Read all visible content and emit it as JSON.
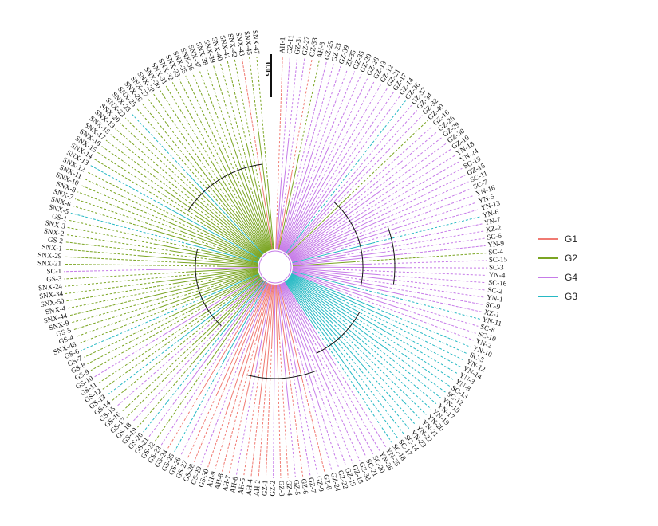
{
  "scale_bar": {
    "label": "0.05"
  },
  "legend": [
    {
      "name": "G1",
      "color": "#f07a72"
    },
    {
      "name": "G2",
      "color": "#7ba523"
    },
    {
      "name": "G4",
      "color": "#c67be8"
    },
    {
      "name": "G3",
      "color": "#27b9c4"
    }
  ],
  "tree_colors": {
    "G1": "#f07a72",
    "G2": "#7ba523",
    "G4": "#c67be8",
    "G3": "#27b9c4",
    "internal": "#111111"
  },
  "tips": [
    {
      "label": "AH-1",
      "group": "G1"
    },
    {
      "label": "GZ-11",
      "group": "G4"
    },
    {
      "label": "GZ-31",
      "group": "G4"
    },
    {
      "label": "GZ-27",
      "group": "G4"
    },
    {
      "label": "GZ-33",
      "group": "G1"
    },
    {
      "label": "AH-3",
      "group": "G2"
    },
    {
      "label": "GZ-25",
      "group": "G4"
    },
    {
      "label": "GZ-23",
      "group": "G4"
    },
    {
      "label": "GZ-39",
      "group": "G4"
    },
    {
      "label": "ZJ-35",
      "group": "G4"
    },
    {
      "label": "GZ-35",
      "group": "G4"
    },
    {
      "label": "GZ-20",
      "group": "G4"
    },
    {
      "label": "GZ-28",
      "group": "G4"
    },
    {
      "label": "GZ-13",
      "group": "G4"
    },
    {
      "label": "GZ-12",
      "group": "G4"
    },
    {
      "label": "GZ-21",
      "group": "G4"
    },
    {
      "label": "GZ-17",
      "group": "G4"
    },
    {
      "label": "GZ-14",
      "group": "G4"
    },
    {
      "label": "GZ-36",
      "group": "G3"
    },
    {
      "label": "GZ-37",
      "group": "G4"
    },
    {
      "label": "GZ-34",
      "group": "G4"
    },
    {
      "label": "GZ-32",
      "group": "G4"
    },
    {
      "label": "GZ-40",
      "group": "G2"
    },
    {
      "label": "GZ-16",
      "group": "G4"
    },
    {
      "label": "GZ-26",
      "group": "G4"
    },
    {
      "label": "GZ-29",
      "group": "G4"
    },
    {
      "label": "GZ-30",
      "group": "G4"
    },
    {
      "label": "GZ-10",
      "group": "G4"
    },
    {
      "label": "YN-18",
      "group": "G4"
    },
    {
      "label": "YN-24",
      "group": "G4"
    },
    {
      "label": "SC-19",
      "group": "G4"
    },
    {
      "label": "GZ-15",
      "group": "G4"
    },
    {
      "label": "SC-11",
      "group": "G4"
    },
    {
      "label": "SC-7",
      "group": "G4"
    },
    {
      "label": "YN-16",
      "group": "G4"
    },
    {
      "label": "YN-5",
      "group": "G4"
    },
    {
      "label": "YN-13",
      "group": "G4"
    },
    {
      "label": "YN-6",
      "group": "G3"
    },
    {
      "label": "YN-7",
      "group": "G4"
    },
    {
      "label": "XZ-2",
      "group": "G4"
    },
    {
      "label": "SC-6",
      "group": "G4"
    },
    {
      "label": "YN-9",
      "group": "G4"
    },
    {
      "label": "SC-4",
      "group": "G2"
    },
    {
      "label": "SC-15",
      "group": "G4"
    },
    {
      "label": "SC-3",
      "group": "G4"
    },
    {
      "label": "YN-4",
      "group": "G4"
    },
    {
      "label": "SC-16",
      "group": "G4"
    },
    {
      "label": "SC-2",
      "group": "G4"
    },
    {
      "label": "YN-1",
      "group": "G4"
    },
    {
      "label": "SC-9",
      "group": "G4"
    },
    {
      "label": "XZ-1",
      "group": "G4"
    },
    {
      "label": "YN-11",
      "group": "G3"
    },
    {
      "label": "SC-8",
      "group": "G4"
    },
    {
      "label": "SC-10",
      "group": "G4"
    },
    {
      "label": "YN-2",
      "group": "G4"
    },
    {
      "label": "YN-10",
      "group": "G3"
    },
    {
      "label": "SC-5",
      "group": "G3"
    },
    {
      "label": "YN-12",
      "group": "G3"
    },
    {
      "label": "YN-14",
      "group": "G3"
    },
    {
      "label": "YN-3",
      "group": "G3"
    },
    {
      "label": "YN-8",
      "group": "G3"
    },
    {
      "label": "SC-13",
      "group": "G3"
    },
    {
      "label": "SC-12",
      "group": "G3"
    },
    {
      "label": "YN-15",
      "group": "G3"
    },
    {
      "label": "YN-17",
      "group": "G3"
    },
    {
      "label": "YN-19",
      "group": "G3"
    },
    {
      "label": "YN-20",
      "group": "G3"
    },
    {
      "label": "YN-21",
      "group": "G3"
    },
    {
      "label": "YN-22",
      "group": "G3"
    },
    {
      "label": "YN-23",
      "group": "G3"
    },
    {
      "label": "SC-14",
      "group": "G3"
    },
    {
      "label": "SC-17",
      "group": "G3"
    },
    {
      "label": "SC-18",
      "group": "G3"
    },
    {
      "label": "YN-25",
      "group": "G4"
    },
    {
      "label": "YN-26",
      "group": "G4"
    },
    {
      "label": "SC-20",
      "group": "G4"
    },
    {
      "label": "SC-21",
      "group": "G4"
    },
    {
      "label": "GZ-38",
      "group": "G4"
    },
    {
      "label": "GZ-18",
      "group": "G4"
    },
    {
      "label": "GZ-19",
      "group": "G4"
    },
    {
      "label": "GZ-22",
      "group": "G4"
    },
    {
      "label": "GZ-24",
      "group": "G4"
    },
    {
      "label": "GZ-8",
      "group": "G1"
    },
    {
      "label": "GZ-9",
      "group": "G4"
    },
    {
      "label": "GZ-7",
      "group": "G4"
    },
    {
      "label": "GZ-6",
      "group": "G1"
    },
    {
      "label": "GZ-5",
      "group": "G4"
    },
    {
      "label": "GZ-4",
      "group": "G1"
    },
    {
      "label": "GZ-3",
      "group": "G1"
    },
    {
      "label": "GZ-2",
      "group": "G4"
    },
    {
      "label": "GZ-1",
      "group": "G1"
    },
    {
      "label": "AH-2",
      "group": "G1"
    },
    {
      "label": "AH-4",
      "group": "G1"
    },
    {
      "label": "AH-5",
      "group": "G1"
    },
    {
      "label": "AH-6",
      "group": "G4"
    },
    {
      "label": "AH-7",
      "group": "G1"
    },
    {
      "label": "AH-8",
      "group": "G1"
    },
    {
      "label": "AH-9",
      "group": "G1"
    },
    {
      "label": "GS-30",
      "group": "G1"
    },
    {
      "label": "GS-29",
      "group": "G4"
    },
    {
      "label": "GS-28",
      "group": "G1"
    },
    {
      "label": "GS-27",
      "group": "G1"
    },
    {
      "label": "GS-26",
      "group": "G4"
    },
    {
      "label": "GS-25",
      "group": "G3"
    },
    {
      "label": "GS-24",
      "group": "G1"
    },
    {
      "label": "GS-23",
      "group": "G4"
    },
    {
      "label": "GS-22",
      "group": "G2"
    },
    {
      "label": "GS-21",
      "group": "G4"
    },
    {
      "label": "GS-20",
      "group": "G3"
    },
    {
      "label": "GS-19",
      "group": "G2"
    },
    {
      "label": "GS-18",
      "group": "G4"
    },
    {
      "label": "GS-17",
      "group": "G2"
    },
    {
      "label": "GS-16",
      "group": "G2"
    },
    {
      "label": "GS-15",
      "group": "G4"
    },
    {
      "label": "GS-14",
      "group": "G2"
    },
    {
      "label": "GS-13",
      "group": "G3"
    },
    {
      "label": "GS-12",
      "group": "G2"
    },
    {
      "label": "GS-11",
      "group": "G2"
    },
    {
      "label": "GS-10",
      "group": "G4"
    },
    {
      "label": "GS-9",
      "group": "G2"
    },
    {
      "label": "GS-8",
      "group": "G2"
    },
    {
      "label": "GS-7",
      "group": "G2"
    },
    {
      "label": "GS-6",
      "group": "G3"
    },
    {
      "label": "SNX-46",
      "group": "G2"
    },
    {
      "label": "GS-4",
      "group": "G2"
    },
    {
      "label": "GS-5",
      "group": "G2"
    },
    {
      "label": "SNX-9",
      "group": "G2"
    },
    {
      "label": "SNX-44",
      "group": "G2"
    },
    {
      "label": "SNX-4",
      "group": "G2"
    },
    {
      "label": "SNX-50",
      "group": "G2"
    },
    {
      "label": "SNX-34",
      "group": "G2"
    },
    {
      "label": "SNX-24",
      "group": "G2"
    },
    {
      "label": "GS-3",
      "group": "G2"
    },
    {
      "label": "SC-1",
      "group": "G4"
    },
    {
      "label": "SNX-21",
      "group": "G2"
    },
    {
      "label": "SNX-29",
      "group": "G2"
    },
    {
      "label": "SNX-1",
      "group": "G2"
    },
    {
      "label": "GS-2",
      "group": "G2"
    },
    {
      "label": "SNX-2",
      "group": "G2"
    },
    {
      "label": "SNX-3",
      "group": "G2"
    },
    {
      "label": "GS-1",
      "group": "G2"
    },
    {
      "label": "SNX-5",
      "group": "G3"
    },
    {
      "label": "SNX-6",
      "group": "G2"
    },
    {
      "label": "SNX-7",
      "group": "G2"
    },
    {
      "label": "SNX-8",
      "group": "G2"
    },
    {
      "label": "SNX-10",
      "group": "G2"
    },
    {
      "label": "SNX-11",
      "group": "G2"
    },
    {
      "label": "SNX-12",
      "group": "G2"
    },
    {
      "label": "SNX-13",
      "group": "G3"
    },
    {
      "label": "SNX-14",
      "group": "G2"
    },
    {
      "label": "SNX-15",
      "group": "G2"
    },
    {
      "label": "SNX-16",
      "group": "G2"
    },
    {
      "label": "SNX-17",
      "group": "G2"
    },
    {
      "label": "SNX-18",
      "group": "G2"
    },
    {
      "label": "SNX-19",
      "group": "G2"
    },
    {
      "label": "SNX-20",
      "group": "G2"
    },
    {
      "label": "SNX-22",
      "group": "G2"
    },
    {
      "label": "SNX-23",
      "group": "G3"
    },
    {
      "label": "SNX-25",
      "group": "G2"
    },
    {
      "label": "SNX-26",
      "group": "G2"
    },
    {
      "label": "SNX-27",
      "group": "G2"
    },
    {
      "label": "SNX-28",
      "group": "G2"
    },
    {
      "label": "SNX-30",
      "group": "G2"
    },
    {
      "label": "SNX-31",
      "group": "G2"
    },
    {
      "label": "SNX-32",
      "group": "G2"
    },
    {
      "label": "SNX-33",
      "group": "G2"
    },
    {
      "label": "SNX-35",
      "group": "G2"
    },
    {
      "label": "SNX-36",
      "group": "G2"
    },
    {
      "label": "SNX-37",
      "group": "G2"
    },
    {
      "label": "SNX-38",
      "group": "G2"
    },
    {
      "label": "SNX-39",
      "group": "G2"
    },
    {
      "label": "SNX-40",
      "group": "G2"
    },
    {
      "label": "SNX-41",
      "group": "G2"
    },
    {
      "label": "SNX-42",
      "group": "G2"
    },
    {
      "label": "SNX-43",
      "group": "G1"
    },
    {
      "label": "SNX-45",
      "group": "G2"
    },
    {
      "label": "SNX-47",
      "group": "G2"
    }
  ]
}
